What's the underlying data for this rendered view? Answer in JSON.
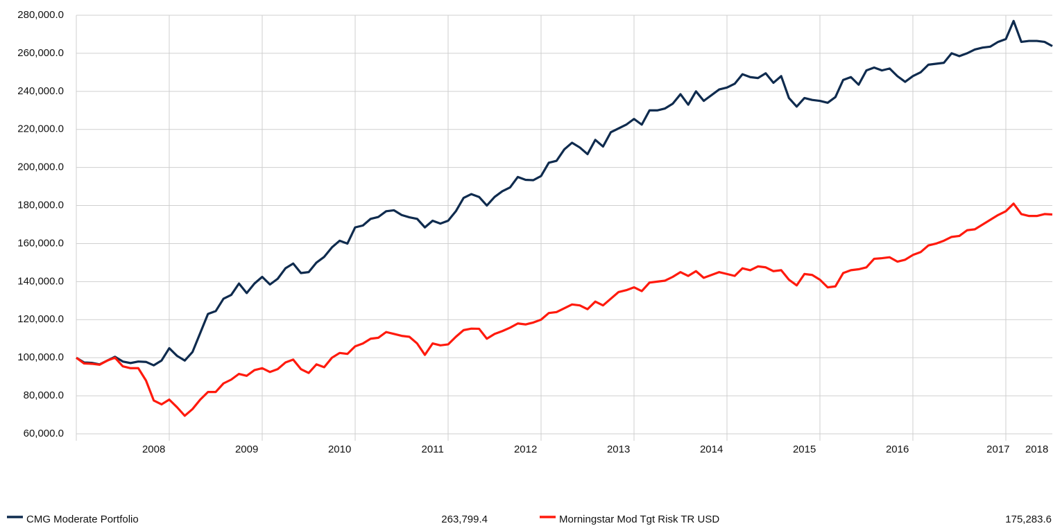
{
  "chart_data": {
    "type": "line",
    "categories": [
      null,
      null,
      null,
      null,
      null,
      null,
      null,
      null,
      null,
      null,
      "2008",
      null,
      null,
      null,
      null,
      null,
      null,
      null,
      null,
      null,
      null,
      null,
      "2009",
      null,
      null,
      null,
      null,
      null,
      null,
      null,
      null,
      null,
      null,
      null,
      "2010",
      null,
      null,
      null,
      null,
      null,
      null,
      null,
      null,
      null,
      null,
      null,
      "2011",
      null,
      null,
      null,
      null,
      null,
      null,
      null,
      null,
      null,
      null,
      null,
      "2012",
      null,
      null,
      null,
      null,
      null,
      null,
      null,
      null,
      null,
      null,
      null,
      "2013",
      null,
      null,
      null,
      null,
      null,
      null,
      null,
      null,
      null,
      null,
      null,
      "2014",
      null,
      null,
      null,
      null,
      null,
      null,
      null,
      null,
      null,
      null,
      null,
      "2015",
      null,
      null,
      null,
      null,
      null,
      null,
      null,
      null,
      null,
      null,
      null,
      "2016",
      null,
      null,
      null,
      null,
      null,
      null,
      null,
      null,
      null,
      null,
      null,
      null,
      "2017",
      null,
      null,
      null,
      null,
      "2018",
      null,
      null
    ],
    "series": [
      {
        "name": "CMG Moderate Portfolio",
        "color": "#0f2b4e",
        "values": [
          100000,
          97500,
          97300,
          96500,
          98500,
          100500,
          98000,
          97200,
          98000,
          97800,
          96000,
          98500,
          105000,
          101000,
          98500,
          103000,
          113000,
          123000,
          124500,
          131000,
          133000,
          139000,
          134000,
          139000,
          142500,
          138500,
          141500,
          147000,
          149500,
          144500,
          145000,
          150000,
          153000,
          158000,
          161500,
          160000,
          168500,
          169500,
          173000,
          174000,
          177000,
          177500,
          175000,
          173800,
          173000,
          168500,
          172000,
          170500,
          172000,
          177000,
          184000,
          186000,
          184500,
          180000,
          184500,
          187500,
          189500,
          195000,
          193500,
          193300,
          195500,
          202500,
          203500,
          209500,
          213000,
          210500,
          207000,
          214500,
          211000,
          218500,
          220500,
          222500,
          225500,
          222500,
          230000,
          230000,
          231000,
          233500,
          238500,
          233000,
          240000,
          235000,
          238000,
          241000,
          242000,
          244000,
          249000,
          247500,
          247000,
          249500,
          244500,
          248000,
          236500,
          232000,
          236500,
          235500,
          235000,
          234000,
          237000,
          246000,
          247500,
          243500,
          251000,
          252500,
          251000,
          252000,
          248000,
          245000,
          248000,
          250000,
          254000,
          254500,
          255000,
          260000,
          258500,
          260000,
          262000,
          263000,
          263500,
          266000,
          267500,
          277000,
          266000,
          266500,
          266500,
          266000,
          263799.4
        ],
        "value_labels": [
          null,
          null,
          null,
          null,
          null,
          null,
          null,
          null,
          null,
          null,
          null,
          null,
          null,
          null,
          null,
          null,
          null,
          null,
          null,
          null,
          null,
          null,
          null,
          null,
          null,
          null,
          null,
          null,
          null,
          null,
          null,
          null,
          null,
          null,
          null,
          null,
          null,
          null,
          null,
          null,
          null,
          null,
          null,
          null,
          null,
          null,
          null,
          null,
          null,
          null,
          null,
          null,
          null,
          null,
          null,
          null,
          null,
          null,
          null,
          null,
          null,
          null,
          null,
          null,
          null,
          null,
          null,
          null,
          null,
          null,
          null,
          null,
          null,
          null,
          null,
          null,
          null,
          null,
          null,
          null,
          null,
          null,
          null,
          null,
          null,
          null,
          null,
          null,
          null,
          null,
          null,
          null,
          null,
          null,
          null,
          null,
          null,
          null,
          null,
          null,
          null,
          null,
          null,
          null,
          null,
          null,
          null,
          null,
          null,
          null,
          null,
          null,
          null,
          null,
          null,
          null,
          null,
          null,
          null,
          null,
          null,
          null,
          null,
          null,
          null,
          null,
          "263,799.4"
        ]
      },
      {
        "name": "Morningstar Mod Tgt Risk TR USD",
        "color": "#ff1a0d",
        "values": [
          100000,
          97000,
          96800,
          96300,
          98500,
          100000,
          95500,
          94500,
          94500,
          88000,
          77500,
          75500,
          78000,
          74000,
          69500,
          73000,
          78000,
          82000,
          82000,
          86500,
          88500,
          91500,
          90500,
          93500,
          94500,
          92500,
          94000,
          97500,
          99000,
          94000,
          92000,
          96500,
          95000,
          100000,
          102500,
          102000,
          106000,
          107500,
          110000,
          110500,
          113500,
          112500,
          111500,
          111000,
          107500,
          101500,
          107500,
          106500,
          107000,
          111000,
          114500,
          115300,
          115200,
          110000,
          112500,
          114000,
          115800,
          118000,
          117500,
          118500,
          120000,
          123500,
          124000,
          126000,
          128000,
          127500,
          125500,
          129500,
          127500,
          131000,
          134500,
          135500,
          137000,
          135000,
          139500,
          140000,
          140500,
          142500,
          145000,
          143000,
          145500,
          142000,
          143500,
          145000,
          144000,
          143000,
          147000,
          146000,
          148000,
          147500,
          145500,
          146000,
          141000,
          138000,
          144000,
          143500,
          141000,
          137000,
          137500,
          144500,
          146000,
          146500,
          147500,
          152000,
          152300,
          152800,
          150500,
          151500,
          154000,
          155500,
          159000,
          160000,
          161500,
          163500,
          164000,
          167000,
          167500,
          170000,
          172500,
          175000,
          177000,
          181000,
          175500,
          174500,
          174500,
          175500,
          175283.6
        ],
        "value_labels": [
          null,
          null,
          null,
          null,
          null,
          null,
          null,
          null,
          null,
          null,
          null,
          null,
          null,
          null,
          null,
          null,
          null,
          null,
          null,
          null,
          null,
          null,
          null,
          null,
          null,
          null,
          null,
          null,
          null,
          null,
          null,
          null,
          null,
          null,
          null,
          null,
          null,
          null,
          null,
          null,
          null,
          null,
          null,
          null,
          null,
          null,
          null,
          null,
          null,
          null,
          null,
          null,
          null,
          null,
          null,
          null,
          null,
          null,
          null,
          null,
          null,
          null,
          null,
          null,
          null,
          null,
          null,
          null,
          null,
          null,
          null,
          null,
          null,
          null,
          null,
          null,
          null,
          null,
          null,
          null,
          null,
          null,
          null,
          null,
          null,
          null,
          null,
          null,
          null,
          null,
          null,
          null,
          null,
          null,
          null,
          null,
          null,
          null,
          null,
          null,
          null,
          null,
          null,
          null,
          null,
          null,
          null,
          null,
          null,
          null,
          null,
          null,
          null,
          null,
          null,
          null,
          null,
          null,
          null,
          null,
          null,
          null,
          null,
          null,
          null,
          null,
          "175,283.6"
        ]
      }
    ],
    "ylim": [
      60000,
      280000
    ],
    "yticks": [
      {
        "value": 60000,
        "label": "60,000.0"
      },
      {
        "value": 80000,
        "label": "80,000.0"
      },
      {
        "value": 100000,
        "label": "100,000.0"
      },
      {
        "value": 120000,
        "label": "120,000.0"
      },
      {
        "value": 140000,
        "label": "140,000.0"
      },
      {
        "value": 160000,
        "label": "160,000.0"
      },
      {
        "value": 180000,
        "label": "180,000.0"
      },
      {
        "value": 200000,
        "label": "200,000.0"
      },
      {
        "value": 220000,
        "label": "220,000.0"
      },
      {
        "value": 240000,
        "label": "240,000.0"
      },
      {
        "value": 260000,
        "label": "260,000.0"
      },
      {
        "value": 280000,
        "label": "280,000.0"
      }
    ],
    "grid": true
  }
}
